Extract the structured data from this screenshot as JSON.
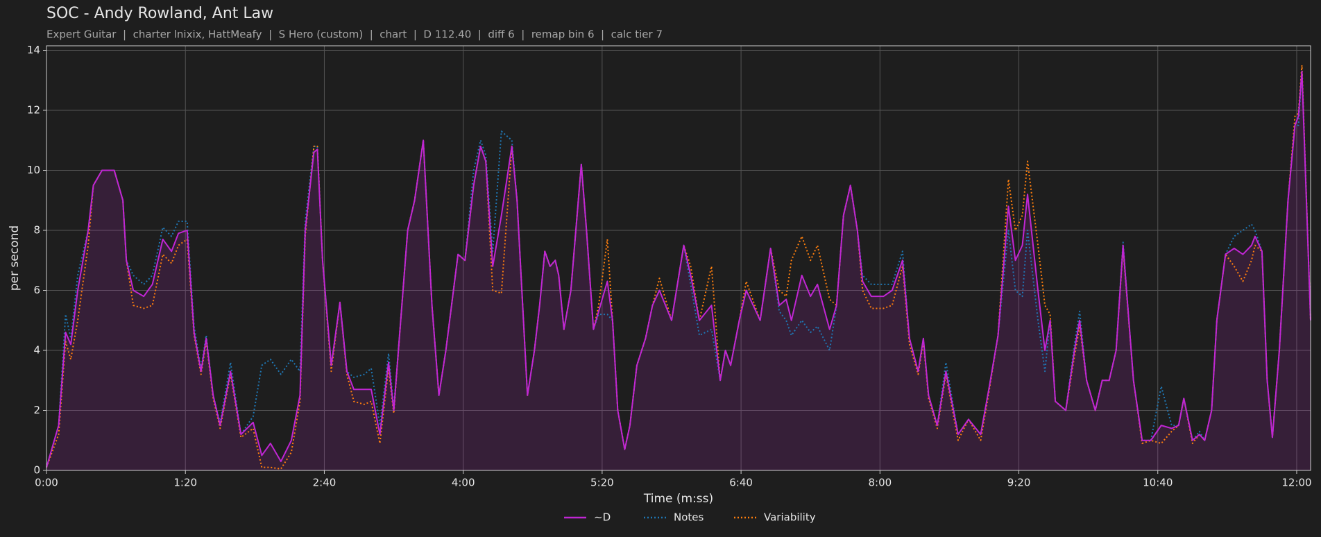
{
  "chart_data": {
    "type": "line",
    "title": "SOC - Andy Rowland, Ant Law",
    "subtitle": "Expert Guitar  |  charter lnixix, HattMeafy  |  S Hero (custom)  |  chart  |  D 112.40  |  diff 6  |  remap bin 6  |  calc tier 7",
    "x_label": "Time (m:ss)",
    "y_label": "per second",
    "x": [
      0,
      7,
      11,
      14,
      18,
      24,
      27,
      32,
      39,
      44,
      46,
      50,
      56,
      61,
      67,
      72,
      76,
      81,
      85,
      89,
      92,
      96,
      100,
      106,
      112,
      119,
      124,
      129,
      135,
      141,
      146,
      149,
      154,
      156,
      159,
      164,
      169,
      173,
      177,
      183,
      187,
      192,
      197,
      200,
      204,
      208,
      212,
      217,
      222,
      226,
      230,
      237,
      241,
      246,
      250,
      253,
      257,
      262,
      268,
      271,
      277,
      281,
      284,
      287,
      290,
      293,
      295,
      298,
      302,
      308,
      311,
      315,
      318,
      323,
      326,
      329,
      333,
      336,
      340,
      345,
      349,
      353,
      360,
      367,
      371,
      376,
      383,
      388,
      391,
      394,
      399,
      403,
      411,
      417,
      422,
      426,
      429,
      435,
      440,
      444,
      451,
      455,
      459,
      463,
      467,
      470,
      475,
      482,
      487,
      493,
      497,
      502,
      505,
      508,
      513,
      518,
      525,
      531,
      538,
      543,
      548,
      554,
      558,
      562,
      565,
      571,
      575,
      578,
      581,
      587,
      592,
      595,
      599,
      604,
      608,
      612,
      616,
      620,
      626,
      631,
      636,
      642,
      648,
      652,
      655,
      660,
      664,
      667,
      671,
      674,
      679,
      684,
      689,
      694,
      696,
      700,
      703,
      706,
      710,
      715,
      719,
      721,
      723,
      728
    ],
    "series": [
      {
        "name": "~D",
        "color": "#c026d3",
        "style": "solid",
        "fill": true,
        "values": [
          0.1,
          1.5,
          4.6,
          4.2,
          6.0,
          8.0,
          9.5,
          10.0,
          10.0,
          9.0,
          7.0,
          6.0,
          5.8,
          6.2,
          7.7,
          7.3,
          7.9,
          8.0,
          4.6,
          3.3,
          4.4,
          2.5,
          1.5,
          3.3,
          1.2,
          1.6,
          0.5,
          0.9,
          0.3,
          1.0,
          2.5,
          8.0,
          10.6,
          10.7,
          7.0,
          3.5,
          5.6,
          3.3,
          2.7,
          2.7,
          2.7,
          1.2,
          3.6,
          2.0,
          5.0,
          8.0,
          9.0,
          11.0,
          5.5,
          2.5,
          4.0,
          7.2,
          7.0,
          9.5,
          10.8,
          10.3,
          6.8,
          8.5,
          10.8,
          9.0,
          2.5,
          4.0,
          5.5,
          7.3,
          6.8,
          7.0,
          6.5,
          4.7,
          6.0,
          10.2,
          8.0,
          4.7,
          5.3,
          6.3,
          5.0,
          2.0,
          0.7,
          1.5,
          3.5,
          4.4,
          5.5,
          6.0,
          5.0,
          7.5,
          6.5,
          5.0,
          5.5,
          3.0,
          4.0,
          3.5,
          5.0,
          6.0,
          5.0,
          7.4,
          5.5,
          5.7,
          5.0,
          6.5,
          5.8,
          6.2,
          4.7,
          5.5,
          8.5,
          9.5,
          8.0,
          6.3,
          5.8,
          5.8,
          6.0,
          7.0,
          4.4,
          3.3,
          4.4,
          2.5,
          1.5,
          3.3,
          1.2,
          1.7,
          1.2,
          2.8,
          4.5,
          8.8,
          7.0,
          7.5,
          9.2,
          6.0,
          4.0,
          5.0,
          2.3,
          2.0,
          4.0,
          5.0,
          3.0,
          2.0,
          3.0,
          3.0,
          4.0,
          7.5,
          3.0,
          1.0,
          1.0,
          1.5,
          1.4,
          1.5,
          2.4,
          1.0,
          1.2,
          1.0,
          2.0,
          5.0,
          7.2,
          7.4,
          7.2,
          7.5,
          7.8,
          7.3,
          3.0,
          1.1,
          4.0,
          9.0,
          11.5,
          11.8,
          13.3,
          5.0
        ]
      },
      {
        "name": "Notes",
        "color": "#1f77b4",
        "style": "dotted",
        "fill": false,
        "values": [
          0.1,
          1.5,
          5.2,
          4.4,
          6.5,
          8.0,
          9.5,
          10.0,
          10.0,
          9.0,
          7.0,
          6.5,
          6.2,
          6.5,
          8.1,
          7.8,
          8.3,
          8.3,
          4.8,
          3.4,
          4.5,
          2.5,
          1.6,
          3.6,
          1.2,
          1.8,
          3.5,
          3.7,
          3.2,
          3.7,
          3.3,
          8.3,
          10.8,
          10.8,
          7.0,
          3.5,
          5.6,
          3.3,
          3.1,
          3.2,
          3.4,
          1.5,
          3.9,
          2.1,
          5.0,
          8.0,
          9.0,
          11.0,
          5.5,
          2.5,
          4.0,
          7.2,
          7.0,
          10.0,
          11.0,
          10.5,
          7.3,
          11.3,
          11.0,
          9.0,
          2.5,
          4.0,
          5.5,
          7.3,
          6.8,
          7.0,
          6.5,
          4.7,
          6.0,
          10.2,
          8.0,
          4.7,
          5.2,
          5.2,
          5.0,
          2.0,
          0.7,
          1.5,
          3.5,
          4.4,
          5.5,
          6.0,
          5.0,
          7.5,
          6.2,
          4.5,
          4.7,
          3.0,
          4.0,
          3.5,
          5.0,
          6.0,
          5.0,
          7.4,
          5.3,
          5.0,
          4.5,
          5.0,
          4.6,
          4.8,
          4.0,
          5.5,
          8.5,
          9.5,
          8.0,
          6.5,
          6.2,
          6.2,
          6.2,
          7.3,
          4.4,
          3.3,
          4.4,
          2.5,
          1.5,
          3.6,
          1.2,
          1.7,
          1.2,
          2.8,
          4.5,
          8.0,
          6.0,
          5.8,
          8.0,
          5.0,
          3.3,
          5.0,
          2.3,
          2.0,
          4.2,
          5.3,
          3.0,
          2.0,
          3.0,
          3.0,
          4.0,
          7.6,
          3.0,
          1.0,
          1.0,
          2.8,
          1.5,
          1.5,
          2.4,
          1.0,
          1.3,
          1.0,
          2.0,
          5.0,
          7.2,
          7.8,
          8.0,
          8.2,
          8.0,
          7.3,
          3.0,
          1.1,
          4.0,
          9.0,
          11.5,
          11.5,
          13.3,
          5.0
        ]
      },
      {
        "name": "Variability",
        "color": "#ff7f0e",
        "style": "dotted",
        "fill": false,
        "values": [
          0.1,
          1.2,
          4.3,
          3.7,
          5.0,
          7.5,
          9.5,
          10.0,
          10.0,
          9.0,
          7.0,
          5.5,
          5.4,
          5.5,
          7.2,
          6.9,
          7.5,
          7.7,
          4.5,
          3.2,
          4.3,
          2.4,
          1.4,
          3.2,
          1.1,
          1.4,
          0.1,
          0.1,
          0.05,
          0.6,
          2.3,
          7.8,
          10.8,
          10.8,
          7.0,
          3.3,
          5.6,
          3.2,
          2.3,
          2.2,
          2.3,
          0.9,
          3.4,
          1.9,
          5.0,
          8.0,
          9.0,
          11.0,
          5.5,
          2.5,
          4.0,
          7.2,
          7.0,
          9.5,
          10.8,
          10.3,
          6.0,
          5.9,
          10.8,
          9.0,
          2.5,
          4.0,
          5.5,
          7.3,
          6.8,
          7.0,
          6.5,
          4.7,
          6.0,
          10.2,
          8.0,
          4.7,
          5.5,
          7.7,
          5.0,
          2.0,
          0.7,
          1.5,
          3.5,
          4.4,
          5.5,
          6.4,
          5.0,
          7.5,
          6.8,
          5.0,
          6.8,
          3.0,
          4.0,
          3.5,
          5.0,
          6.3,
          5.0,
          7.4,
          6.0,
          5.8,
          7.0,
          7.8,
          7.0,
          7.5,
          5.7,
          5.5,
          8.5,
          9.5,
          8.0,
          6.0,
          5.4,
          5.4,
          5.5,
          6.8,
          4.2,
          3.2,
          4.3,
          2.4,
          1.4,
          3.2,
          1.0,
          1.7,
          1.0,
          2.7,
          4.5,
          9.7,
          8.0,
          8.5,
          10.3,
          7.5,
          5.5,
          5.2,
          2.3,
          2.0,
          3.8,
          4.8,
          3.0,
          2.0,
          3.0,
          3.0,
          4.0,
          7.4,
          3.0,
          0.9,
          1.0,
          0.9,
          1.3,
          1.5,
          2.4,
          0.9,
          1.2,
          1.0,
          2.0,
          5.0,
          7.2,
          6.8,
          6.3,
          7.0,
          7.5,
          7.3,
          3.0,
          1.1,
          4.0,
          9.0,
          11.8,
          11.9,
          13.5,
          5.0
        ]
      }
    ],
    "xlim": [
      0,
      728
    ],
    "xticks": [
      {
        "value": 0,
        "label": "0:00"
      },
      {
        "value": 80,
        "label": "1:20"
      },
      {
        "value": 160,
        "label": "2:40"
      },
      {
        "value": 240,
        "label": "4:00"
      },
      {
        "value": 320,
        "label": "5:20"
      },
      {
        "value": 400,
        "label": "6:40"
      },
      {
        "value": 480,
        "label": "8:00"
      },
      {
        "value": 560,
        "label": "9:20"
      },
      {
        "value": 640,
        "label": "10:40"
      },
      {
        "value": 720,
        "label": "12:00"
      }
    ],
    "ylim": [
      0,
      14.15
    ],
    "yticks": [
      0,
      2,
      4,
      6,
      8,
      10,
      12,
      14
    ],
    "grid": true,
    "legend": "bottom"
  }
}
